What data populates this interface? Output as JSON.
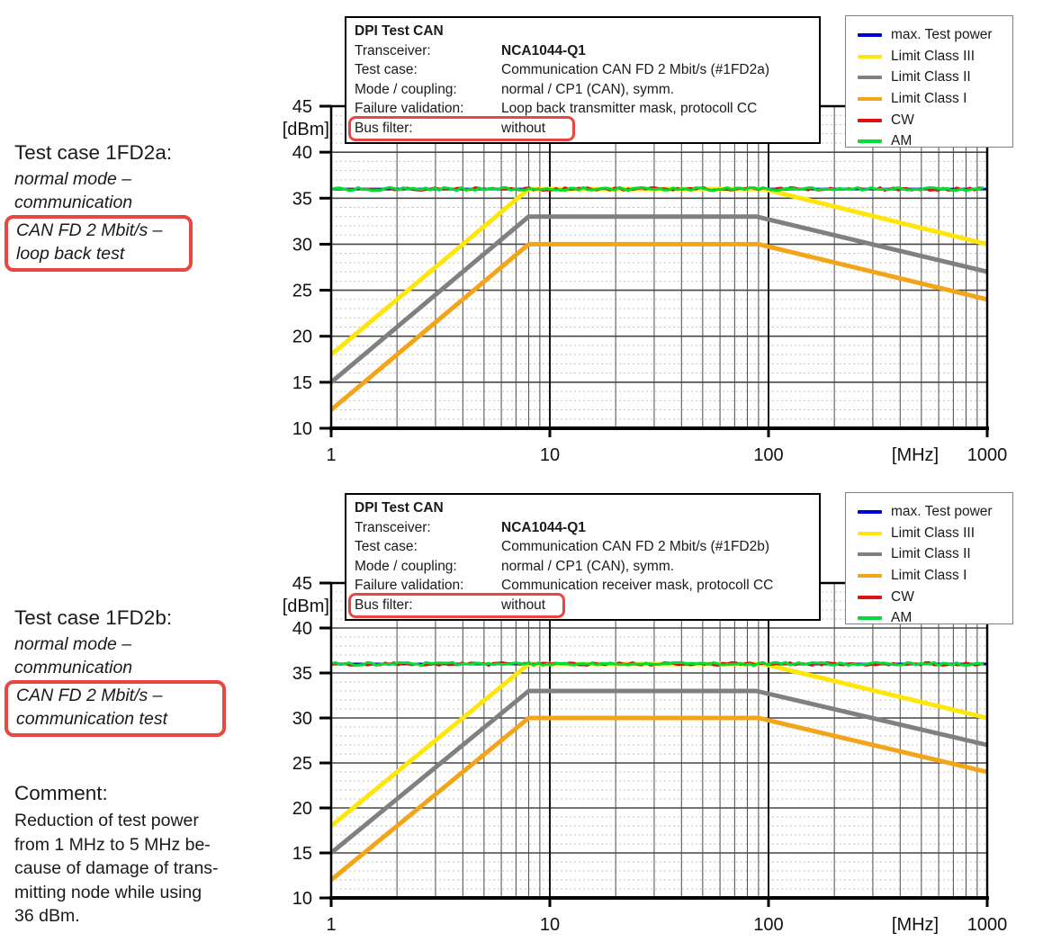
{
  "page": {
    "background": "#ffffff"
  },
  "annotations": {
    "highlight_color": "#e8473f",
    "test_case_1": {
      "title": "Test case 1FD2a:",
      "line1": "normal mode –",
      "line2": "communication",
      "boxed_line1": "CAN FD 2 Mbit/s –",
      "boxed_line2": "loop back test"
    },
    "test_case_2": {
      "title": "Test case 1FD2b:",
      "line1": "normal mode –",
      "line2": "communication",
      "boxed_line1": "CAN FD 2 Mbit/s –",
      "boxed_line2": "communication test"
    },
    "comment": {
      "title": "Comment:",
      "lines": [
        "Reduction of test power",
        "from 1 MHz to 5 MHz be-",
        "cause of damage of trans-",
        "mitting node while using",
        "36 dBm."
      ]
    }
  },
  "info_boxes": [
    {
      "title": "DPI Test CAN",
      "rows": [
        {
          "label": "Transceiver:",
          "value": "NCA1044-Q1"
        },
        {
          "label": "Test case:",
          "value": "Communication CAN FD 2 Mbit/s (#1FD2a)"
        },
        {
          "label": "Mode / coupling:",
          "value": "normal / CP1 (CAN), symm."
        },
        {
          "label": "Failure validation:",
          "value": "Loop back transmitter mask, protocoll CC"
        },
        {
          "label": "Bus filter:",
          "value": "without"
        }
      ]
    },
    {
      "title": "DPI Test CAN",
      "rows": [
        {
          "label": "Transceiver:",
          "value": "NCA1044-Q1"
        },
        {
          "label": "Test case:",
          "value": "Communication CAN FD 2 Mbit/s (#1FD2b)"
        },
        {
          "label": "Mode / coupling:",
          "value": "normal / CP1 (CAN), symm."
        },
        {
          "label": "Failure validation:",
          "value": "Communication receiver mask, protocoll CC"
        },
        {
          "label": "Bus filter:",
          "value": "without"
        }
      ]
    }
  ],
  "legend": {
    "items": [
      {
        "label": "max. Test power",
        "color": "#0000d8"
      },
      {
        "label": "Limit Class III",
        "color": "#ffe60a"
      },
      {
        "label": "Limit Class II",
        "color": "#808080"
      },
      {
        "label": "Limit Class I",
        "color": "#f4a418"
      },
      {
        "label": "CW",
        "color": "#dd1111"
      },
      {
        "label": "AM",
        "color": "#00dd33"
      }
    ]
  },
  "chart_data": [
    {
      "id": "#1FD2a",
      "type": "line",
      "x_scale": "log",
      "x_range": [
        1,
        1000
      ],
      "x_ticks": [
        1,
        10,
        100,
        1000
      ],
      "x_unit_label": "[MHz]",
      "y_range": [
        10,
        45
      ],
      "y_tick_step": 5,
      "y_minor_step": 1,
      "y_unit_label": "[dBm]",
      "grid": true,
      "legend_position": "top-right",
      "series": [
        {
          "name": "max. Test power",
          "color": "#0000d8",
          "noisy": false,
          "points": [
            [
              1,
              36
            ],
            [
              1000,
              36
            ]
          ]
        },
        {
          "name": "Limit Class III",
          "color": "#ffe60a",
          "noisy": false,
          "points": [
            [
              1,
              18
            ],
            [
              8,
              36
            ],
            [
              95,
              36
            ],
            [
              1000,
              30
            ]
          ]
        },
        {
          "name": "Limit Class II",
          "color": "#808080",
          "noisy": false,
          "points": [
            [
              1,
              15
            ],
            [
              8,
              33
            ],
            [
              88,
              33
            ],
            [
              1000,
              27
            ]
          ]
        },
        {
          "name": "Limit Class I",
          "color": "#f4a418",
          "noisy": false,
          "points": [
            [
              1,
              12
            ],
            [
              8,
              30
            ],
            [
              90,
              30
            ],
            [
              1000,
              24
            ]
          ]
        },
        {
          "name": "CW",
          "color": "#dd1111",
          "noisy": true,
          "points": [
            [
              1,
              36
            ],
            [
              1000,
              36
            ]
          ]
        },
        {
          "name": "AM",
          "color": "#00dd33",
          "noisy": true,
          "points": [
            [
              1,
              36
            ],
            [
              1000,
              36
            ]
          ]
        }
      ]
    },
    {
      "id": "#1FD2b",
      "type": "line",
      "x_scale": "log",
      "x_range": [
        1,
        1000
      ],
      "x_ticks": [
        1,
        10,
        100,
        1000
      ],
      "x_unit_label": "[MHz]",
      "y_range": [
        10,
        45
      ],
      "y_tick_step": 5,
      "y_minor_step": 1,
      "y_unit_label": "[dBm]",
      "grid": true,
      "legend_position": "top-right",
      "series": [
        {
          "name": "max. Test power",
          "color": "#0000d8",
          "noisy": false,
          "points": [
            [
              1,
              36
            ],
            [
              1000,
              36
            ]
          ]
        },
        {
          "name": "Limit Class III",
          "color": "#ffe60a",
          "noisy": false,
          "points": [
            [
              1,
              18
            ],
            [
              8,
              36
            ],
            [
              95,
              36
            ],
            [
              1000,
              30
            ]
          ]
        },
        {
          "name": "Limit Class II",
          "color": "#808080",
          "noisy": false,
          "points": [
            [
              1,
              15
            ],
            [
              8,
              33
            ],
            [
              88,
              33
            ],
            [
              1000,
              27
            ]
          ]
        },
        {
          "name": "Limit Class I",
          "color": "#f4a418",
          "noisy": false,
          "points": [
            [
              1,
              12
            ],
            [
              8,
              30
            ],
            [
              90,
              30
            ],
            [
              1000,
              24
            ]
          ]
        },
        {
          "name": "CW",
          "color": "#dd1111",
          "noisy": true,
          "points": [
            [
              1,
              36
            ],
            [
              1000,
              36
            ]
          ]
        },
        {
          "name": "AM",
          "color": "#00dd33",
          "noisy": true,
          "points": [
            [
              1,
              36
            ],
            [
              1000,
              36
            ]
          ]
        }
      ]
    }
  ]
}
